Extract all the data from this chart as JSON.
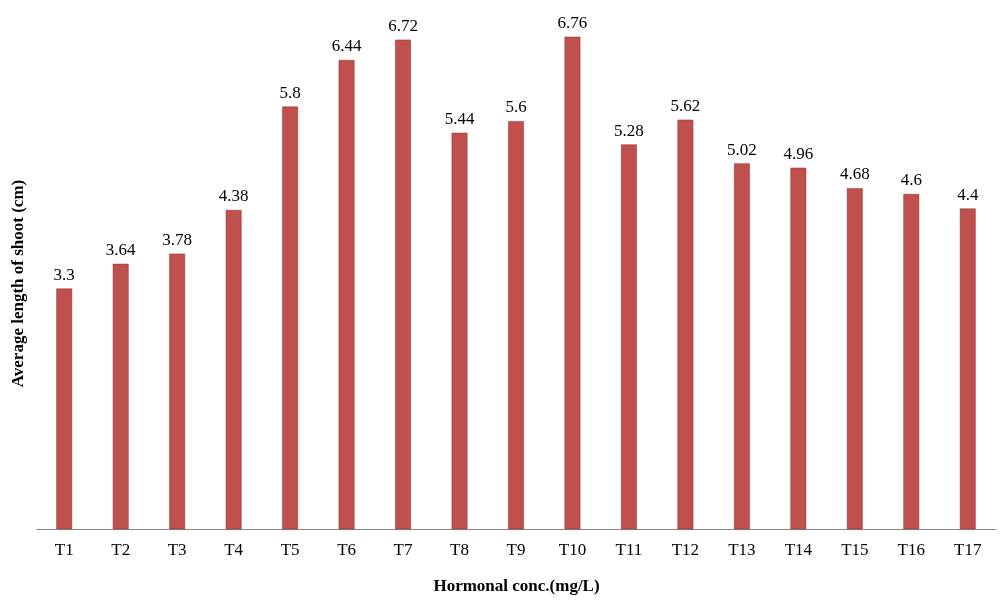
{
  "chart_data": {
    "type": "bar",
    "xlabel": "Hormonal conc.(mg/L)",
    "ylabel": "Average length of shoot (cm)",
    "categories": [
      "T1",
      "T2",
      "T3",
      "T4",
      "T5",
      "T6",
      "T7",
      "T8",
      "T9",
      "T10",
      "T11",
      "T12",
      "T13",
      "T14",
      "T15",
      "T16",
      "T17"
    ],
    "values": [
      3.3,
      3.64,
      3.78,
      4.38,
      5.8,
      6.44,
      6.72,
      5.44,
      5.6,
      6.76,
      5.28,
      5.62,
      5.02,
      4.96,
      4.68,
      4.6,
      4.4
    ],
    "color": "#c0504d",
    "data_labels": true,
    "tick_labels": "x",
    "grid": false
  }
}
